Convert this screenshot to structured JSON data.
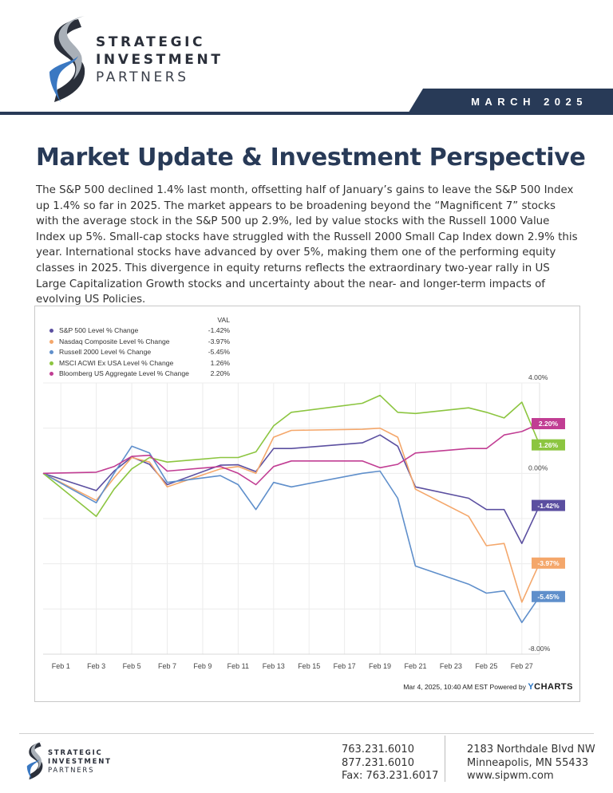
{
  "brand": {
    "line1": "STRATEGIC",
    "line2": "INVESTMENT",
    "line3": "PARTNERS",
    "navy": "#283a57",
    "accent_blue": "#3a78c2"
  },
  "header": {
    "date": "MARCH 2025"
  },
  "article": {
    "title": "Market Update & Investment Perspective",
    "body": "The S&P 500 declined 1.4% last month, offsetting half of January’s gains to leave the S&P 500 Index up 1.4% so far in 2025.  The market appears to be broadening beyond the “Magnificent 7” stocks with the average stock in the S&P 500 up 2.9%, led by value stocks with the Russell 1000 Value Index up 5%.  Small-cap stocks have struggled with the Russell 2000 Small Cap Index down 2.9% this year.  International stocks have advanced by over 5%, making them one of the performing equity classes in 2025.  This divergence in equity returns reflects the extraordinary two-year rally in US Large Capitalization Growth stocks and uncertainty about the near- and longer-term impacts of evolving US Policies."
  },
  "chart_data": {
    "type": "line",
    "legend_header": "VAL",
    "legend_position": "top-left",
    "x": [
      "Jan 31",
      "Feb 3",
      "Feb 4",
      "Feb 5",
      "Feb 6",
      "Feb 7",
      "Feb 10",
      "Feb 11",
      "Feb 12",
      "Feb 13",
      "Feb 14",
      "Feb 18",
      "Feb 19",
      "Feb 20",
      "Feb 21",
      "Feb 24",
      "Feb 25",
      "Feb 26",
      "Feb 27",
      "Feb 28"
    ],
    "x_positions": [
      0,
      3,
      4,
      5,
      6,
      7,
      10,
      11,
      12,
      13,
      14,
      18,
      19,
      20,
      21,
      24,
      25,
      26,
      27,
      28
    ],
    "xticks": [
      "Feb 1",
      "Feb 3",
      "Feb 5",
      "Feb 7",
      "Feb 9",
      "Feb 11",
      "Feb 13",
      "Feb 15",
      "Feb 17",
      "Feb 19",
      "Feb 21",
      "Feb 23",
      "Feb 25",
      "Feb 27"
    ],
    "xtick_positions": [
      1,
      3,
      5,
      7,
      9,
      11,
      13,
      15,
      17,
      19,
      21,
      23,
      25,
      27
    ],
    "yticks": [
      "4.00%",
      "0.00%",
      "-8.00%"
    ],
    "ytick_values": [
      4,
      0,
      -8
    ],
    "ylim": [
      -8,
      4
    ],
    "grid": true,
    "series": [
      {
        "name": "S&P 500 Level % Change",
        "val": "-1.42%",
        "color": "#5b4fa0",
        "values": [
          0,
          -0.76,
          0.1,
          0.72,
          0.4,
          -0.5,
          0.36,
          0.38,
          0.08,
          1.1,
          1.1,
          1.35,
          1.7,
          1.2,
          -0.6,
          -1.1,
          -1.6,
          -1.6,
          -3.1,
          -1.42
        ]
      },
      {
        "name": "Nasdaq Composite Level % Change",
        "val": "-3.97%",
        "color": "#f4a76b",
        "values": [
          0,
          -1.2,
          -0.2,
          0.7,
          0.5,
          -0.6,
          0.2,
          0.3,
          0.0,
          1.6,
          1.9,
          1.95,
          2.0,
          1.6,
          -0.7,
          -1.9,
          -3.2,
          -3.1,
          -5.7,
          -3.97
        ]
      },
      {
        "name": "Russell 2000 Level % Change",
        "val": "-5.45%",
        "color": "#5f8fcb",
        "values": [
          0,
          -1.3,
          0.0,
          1.2,
          0.9,
          -0.4,
          -0.1,
          -0.5,
          -1.6,
          -0.4,
          -0.6,
          0.0,
          0.1,
          -1.1,
          -4.1,
          -4.9,
          -5.3,
          -5.2,
          -6.6,
          -5.45
        ]
      },
      {
        "name": "MSCI ACWI Ex USA Level % Change",
        "val": "1.26%",
        "color": "#8cc540",
        "values": [
          0,
          -1.9,
          -0.7,
          0.2,
          0.7,
          0.5,
          0.7,
          0.7,
          0.95,
          2.1,
          2.7,
          3.1,
          3.45,
          2.7,
          2.65,
          2.9,
          2.7,
          2.45,
          3.15,
          1.26
        ]
      },
      {
        "name": "Bloomberg US Aggregate Level % Change",
        "val": "2.20%",
        "color": "#c13d93",
        "values": [
          0,
          0.05,
          0.3,
          0.75,
          0.8,
          0.1,
          0.3,
          0.0,
          -0.5,
          0.3,
          0.55,
          0.55,
          0.25,
          0.4,
          0.9,
          1.1,
          1.1,
          1.7,
          1.85,
          2.2
        ]
      }
    ],
    "end_labels": [
      "2.20%",
      "1.26%",
      "-1.42%",
      "-3.97%",
      "-5.45%"
    ],
    "source": "Mar 4, 2025, 10:40 AM EST Powered by",
    "source_brand_y": "Y",
    "source_brand_rest": "CHARTS"
  },
  "footer": {
    "logo_line1": "STRATEGIC",
    "logo_line2": "INVESTMENT",
    "logo_line3": "PARTNERS",
    "phone1": "763.231.6010",
    "phone2": "877.231.6010",
    "fax": "Fax: 763.231.6017",
    "address1": "2183 Northdale Blvd NW",
    "address2": "Minneapolis, MN 55433",
    "website": "www.sipwm.com"
  }
}
